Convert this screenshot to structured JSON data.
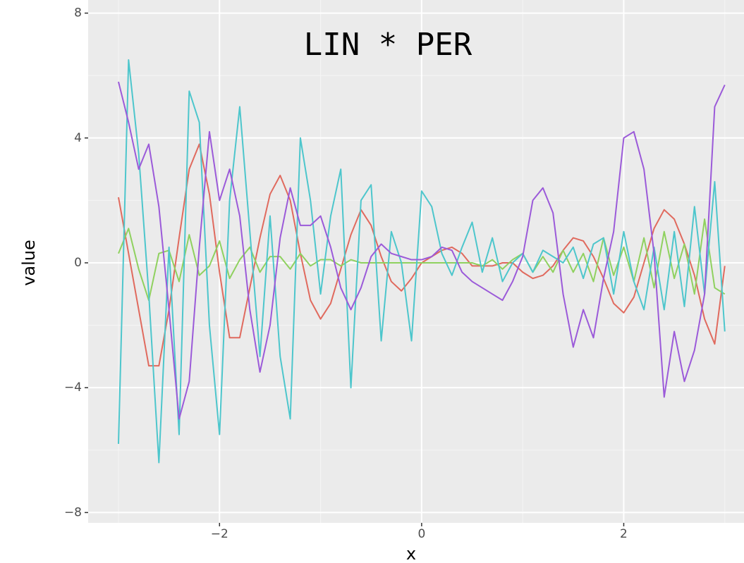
{
  "chart_data": {
    "type": "line",
    "title": "LIN * PER",
    "x_label": "x",
    "y_label": "value",
    "x": [
      -3.0,
      -2.9,
      -2.8,
      -2.7,
      -2.6,
      -2.5,
      -2.4,
      -2.3,
      -2.2,
      -2.1,
      -2.0,
      -1.9,
      -1.8,
      -1.7,
      -1.6,
      -1.5,
      -1.4,
      -1.3,
      -1.2,
      -1.1,
      -1.0,
      -0.9,
      -0.8,
      -0.7,
      -0.6,
      -0.5,
      -0.4,
      -0.3,
      -0.2,
      -0.1,
      0.0,
      0.1,
      0.2,
      0.3,
      0.4,
      0.5,
      0.6,
      0.7,
      0.8,
      0.9,
      1.0,
      1.1,
      1.2,
      1.3,
      1.4,
      1.5,
      1.6,
      1.7,
      1.8,
      1.9,
      2.0,
      2.1,
      2.2,
      2.3,
      2.4,
      2.5,
      2.6,
      2.7,
      2.8,
      2.9,
      3.0
    ],
    "series": [
      {
        "color": "#e06a5e",
        "values": [
          2.1,
          0.3,
          -1.5,
          -3.3,
          -3.3,
          -1.5,
          0.8,
          3.0,
          3.8,
          2.2,
          -0.3,
          -2.4,
          -2.4,
          -0.8,
          0.8,
          2.2,
          2.8,
          2.0,
          0.3,
          -1.2,
          -1.8,
          -1.3,
          -0.2,
          0.9,
          1.7,
          1.2,
          0.2,
          -0.6,
          -0.9,
          -0.5,
          0.0,
          0.2,
          0.4,
          0.5,
          0.3,
          -0.1,
          -0.1,
          -0.1,
          0.0,
          0.0,
          -0.3,
          -0.5,
          -0.4,
          -0.1,
          0.4,
          0.8,
          0.7,
          0.2,
          -0.5,
          -1.3,
          -1.6,
          -1.1,
          0.0,
          1.1,
          1.7,
          1.4,
          0.6,
          -0.4,
          -1.8,
          -2.6,
          -0.1
        ]
      },
      {
        "color": "#8fd15f",
        "values": [
          0.3,
          1.1,
          -0.2,
          -1.2,
          0.3,
          0.4,
          -0.6,
          0.9,
          -0.4,
          -0.1,
          0.7,
          -0.5,
          0.1,
          0.5,
          -0.3,
          0.2,
          0.2,
          -0.2,
          0.3,
          -0.1,
          0.1,
          0.1,
          -0.1,
          0.1,
          0.0,
          0.0,
          0.0,
          0.0,
          0.0,
          0.0,
          0.0,
          0.0,
          0.0,
          0.0,
          0.0,
          0.0,
          -0.1,
          0.1,
          -0.2,
          0.1,
          0.3,
          -0.3,
          0.2,
          -0.3,
          0.4,
          -0.3,
          0.3,
          -0.6,
          0.8,
          -0.4,
          0.5,
          -0.6,
          0.8,
          -0.8,
          1.0,
          -0.5,
          0.6,
          -1.0,
          1.4,
          -0.8,
          -1.0
        ]
      },
      {
        "color": "#4dc6cc",
        "values": [
          -5.8,
          6.5,
          3.5,
          -1.0,
          -6.4,
          0.5,
          -5.5,
          5.5,
          4.5,
          -2.0,
          -5.5,
          2.0,
          5.0,
          1.0,
          -3.0,
          1.5,
          -3.0,
          -5.0,
          4.0,
          2.0,
          -1.0,
          1.5,
          3.0,
          -4.0,
          2.0,
          2.5,
          -2.5,
          1.0,
          0.0,
          -2.5,
          2.3,
          1.8,
          0.3,
          -0.4,
          0.5,
          1.3,
          -0.3,
          0.8,
          -0.6,
          0.0,
          0.3,
          -0.3,
          0.4,
          0.2,
          0.0,
          0.5,
          -0.5,
          0.6,
          0.8,
          -1.0,
          1.0,
          -0.6,
          -1.5,
          0.5,
          -1.5,
          1.0,
          -1.4,
          1.8,
          -1.0,
          2.6,
          -2.2
        ]
      },
      {
        "color": "#9b5ad9",
        "values": [
          5.8,
          4.5,
          3.0,
          3.8,
          1.8,
          -1.5,
          -5.0,
          -3.8,
          0.5,
          4.2,
          2.0,
          3.0,
          1.5,
          -1.5,
          -3.5,
          -2.0,
          0.8,
          2.4,
          1.2,
          1.2,
          1.5,
          0.5,
          -0.8,
          -1.5,
          -0.8,
          0.2,
          0.6,
          0.3,
          0.2,
          0.1,
          0.1,
          0.2,
          0.5,
          0.4,
          -0.3,
          -0.6,
          -0.8,
          -1.0,
          -1.2,
          -0.6,
          0.2,
          2.0,
          2.4,
          1.6,
          -1.0,
          -2.7,
          -1.5,
          -2.4,
          -0.5,
          1.0,
          4.0,
          4.2,
          3.0,
          0.3,
          -4.3,
          -2.2,
          -3.8,
          -2.8,
          -1.0,
          5.0,
          5.7
        ]
      }
    ],
    "xlim": [
      -3.3,
      3.19
    ],
    "ylim": [
      -8.33,
      8.42
    ],
    "xticks": [
      {
        "value": -2,
        "label": "−2"
      },
      0,
      2
    ],
    "yticks": [
      {
        "value": -8,
        "label": "−8"
      },
      {
        "value": -4,
        "label": "−4"
      },
      0,
      4,
      8
    ],
    "minor_xticks": [
      -3,
      -1,
      1,
      3
    ],
    "minor_yticks": [
      -6,
      -2,
      2,
      6
    ],
    "grid": true
  }
}
